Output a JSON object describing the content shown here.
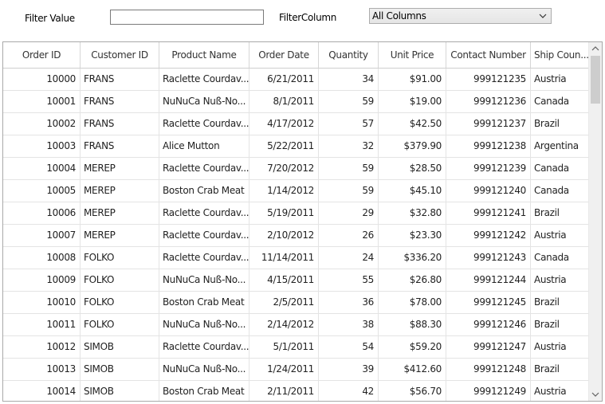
{
  "filter": {
    "value_label": "Filter Value",
    "value": "",
    "column_label": "FilterColumn",
    "column_selected": "All Columns"
  },
  "grid": {
    "columns": [
      "Order ID",
      "Customer ID",
      "Product Name",
      "Order Date",
      "Quantity",
      "Unit Price",
      "Contact Number",
      "Ship Coun..."
    ],
    "rows": [
      [
        "10000",
        "FRANS",
        "Raclette  Courdav...",
        "6/21/2011",
        "34",
        "$91.00",
        "999121235",
        "Austria"
      ],
      [
        "10001",
        "FRANS",
        "NuNuCa  Nuß-No...",
        "8/1/2011",
        "59",
        "$19.00",
        "999121236",
        "Canada"
      ],
      [
        "10002",
        "FRANS",
        "Raclette  Courdav...",
        "4/17/2012",
        "57",
        "$42.50",
        "999121237",
        "Brazil"
      ],
      [
        "10003",
        "FRANS",
        "Alice Mutton",
        "5/22/2011",
        "32",
        "$379.90",
        "999121238",
        "Argentina"
      ],
      [
        "10004",
        "MEREP",
        "Raclette  Courdav...",
        "7/20/2012",
        "59",
        "$28.50",
        "999121239",
        "Canada"
      ],
      [
        "10005",
        "MEREP",
        "Boston Crab Meat",
        "1/14/2012",
        "59",
        "$45.10",
        "999121240",
        "Canada"
      ],
      [
        "10006",
        "MEREP",
        "Raclette  Courdav...",
        "5/19/2011",
        "29",
        "$32.80",
        "999121241",
        "Brazil"
      ],
      [
        "10007",
        "MEREP",
        "Raclette  Courdav...",
        "2/10/2012",
        "26",
        "$23.30",
        "999121242",
        "Austria"
      ],
      [
        "10008",
        "FOLKO",
        "Raclette  Courdav...",
        "11/14/2011",
        "24",
        "$336.20",
        "999121243",
        "Canada"
      ],
      [
        "10009",
        "FOLKO",
        "NuNuCa  Nuß-No...",
        "4/15/2011",
        "55",
        "$26.80",
        "999121244",
        "Austria"
      ],
      [
        "10010",
        "FOLKO",
        "Boston Crab Meat",
        "2/5/2011",
        "36",
        "$78.00",
        "999121245",
        "Brazil"
      ],
      [
        "10011",
        "FOLKO",
        "NuNuCa  Nuß-No...",
        "2/14/2012",
        "38",
        "$88.30",
        "999121246",
        "Brazil"
      ],
      [
        "10012",
        "SIMOB",
        "Raclette  Courdav...",
        "5/1/2011",
        "54",
        "$59.20",
        "999121247",
        "Austria"
      ],
      [
        "10013",
        "SIMOB",
        "NuNuCa  Nuß-No...",
        "1/24/2011",
        "39",
        "$412.60",
        "999121248",
        "Brazil"
      ],
      [
        "10014",
        "SIMOB",
        "Boston Crab Meat",
        "2/11/2011",
        "42",
        "$56.70",
        "999121249",
        "Austria"
      ]
    ]
  },
  "icons": {
    "dropdown": "chevron-down-icon",
    "scroll_up": "arrow-up-icon",
    "scroll_down": "arrow-down-icon"
  }
}
